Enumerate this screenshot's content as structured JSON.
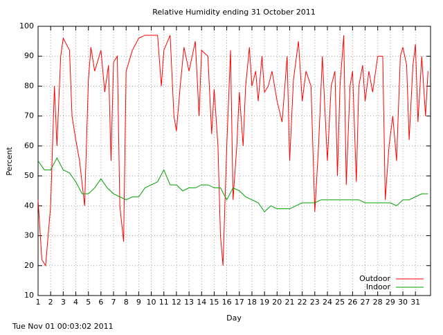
{
  "chart_data": {
    "type": "line",
    "title": "Relative Humidity ending 31 October 2011",
    "xlabel": "Day",
    "ylabel": "Percent",
    "timestamp": "Tue Nov 01 00:03:02 2011",
    "xlim": [
      1,
      32.2
    ],
    "ylim": [
      10,
      100
    ],
    "xticks": [
      1,
      2,
      3,
      4,
      5,
      6,
      7,
      8,
      9,
      10,
      11,
      12,
      13,
      14,
      15,
      16,
      17,
      18,
      19,
      20,
      21,
      22,
      23,
      24,
      25,
      26,
      27,
      28,
      29,
      30,
      31
    ],
    "yticks": [
      10,
      20,
      30,
      40,
      50,
      60,
      70,
      80,
      90,
      100
    ],
    "grid": true,
    "legend": "bottom-right",
    "series": [
      {
        "name": "Outdoor",
        "color": "#ff0000",
        "x": [
          1,
          1.3,
          1.6,
          2,
          2.3,
          2.5,
          2.8,
          3,
          3.5,
          3.7,
          4,
          4.3,
          4.7,
          5,
          5.2,
          5.5,
          6,
          6.3,
          6.6,
          6.8,
          7,
          7.3,
          7.5,
          7.8,
          8,
          8.5,
          9,
          9.5,
          10,
          10.5,
          10.8,
          11,
          11.5,
          11.8,
          12,
          12.3,
          12.6,
          13,
          13.5,
          13.8,
          14,
          14.5,
          14.8,
          15,
          15.3,
          15.5,
          15.7,
          16,
          16.3,
          16.5,
          16.8,
          17,
          17.3,
          17.5,
          17.8,
          18,
          18.3,
          18.5,
          18.8,
          19,
          19.3,
          19.6,
          20,
          20.4,
          20.8,
          21,
          21.3,
          21.7,
          22,
          22.3,
          22.7,
          23,
          23.3,
          23.6,
          24,
          24.3,
          24.6,
          24.8,
          25,
          25.3,
          25.5,
          25.8,
          26,
          26.3,
          26.5,
          26.8,
          27,
          27.3,
          27.6,
          28,
          28.4,
          28.6,
          28.9,
          29.2,
          29.5,
          29.8,
          30,
          30.3,
          30.5,
          30.8,
          31,
          31.2,
          31.5,
          31.8,
          32
        ],
        "values": [
          42,
          22,
          20,
          40,
          80,
          60,
          90,
          96,
          92,
          70,
          62,
          55,
          40,
          82,
          93,
          85,
          92,
          78,
          87,
          55,
          88,
          90,
          40,
          28,
          85,
          92,
          96,
          97,
          97,
          97,
          80,
          92,
          97,
          70,
          65,
          80,
          93,
          85,
          95,
          70,
          92,
          90,
          64,
          79,
          60,
          30,
          20,
          60,
          92,
          42,
          60,
          78,
          60,
          80,
          93,
          80,
          85,
          75,
          90,
          78,
          80,
          85,
          75,
          68,
          90,
          55,
          82,
          95,
          75,
          85,
          80,
          38,
          60,
          90,
          55,
          80,
          85,
          50,
          80,
          97,
          47,
          80,
          85,
          48,
          80,
          87,
          75,
          85,
          78,
          90,
          90,
          42,
          60,
          70,
          55,
          90,
          93,
          87,
          62,
          87,
          94,
          68,
          90,
          70,
          85
        ]
      },
      {
        "name": "Indoor",
        "color": "#00a000",
        "x": [
          1,
          1.5,
          2,
          2.5,
          3,
          3.5,
          4,
          4.5,
          5,
          5.5,
          6,
          6.5,
          7,
          7.5,
          8,
          8.5,
          9,
          9.5,
          10,
          10.5,
          11,
          11.5,
          12,
          12.5,
          13,
          13.5,
          14,
          14.5,
          15,
          15.5,
          16,
          16.5,
          17,
          17.5,
          18,
          18.5,
          19,
          19.5,
          20,
          20.5,
          21,
          21.5,
          22,
          22.5,
          23,
          23.5,
          24,
          24.5,
          25,
          25.5,
          26,
          26.5,
          27,
          27.5,
          28,
          28.5,
          29,
          29.5,
          30,
          30.5,
          31,
          31.5,
          32
        ],
        "values": [
          55,
          52,
          52,
          56,
          52,
          51,
          48,
          44,
          44,
          46,
          49,
          46,
          44,
          43,
          42,
          43,
          43,
          46,
          47,
          48,
          52,
          47,
          47,
          45,
          46,
          46,
          47,
          47,
          46,
          46,
          42,
          46,
          45,
          43,
          42,
          41,
          38,
          40,
          39,
          39,
          39,
          40,
          41,
          41,
          41,
          42,
          42,
          42,
          42,
          42,
          42,
          42,
          41,
          41,
          41,
          41,
          41,
          40,
          42,
          42,
          43,
          44,
          44
        ]
      }
    ]
  }
}
